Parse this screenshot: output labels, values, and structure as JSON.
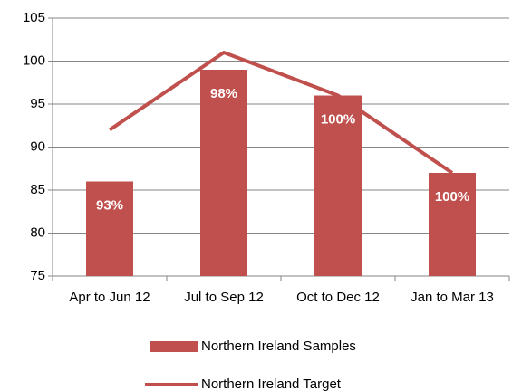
{
  "chart_data": {
    "type": "combo",
    "categories": [
      "Apr to Jun 12",
      "Jul to Sep 12",
      "Oct to Dec 12",
      "Jan to Mar 13"
    ],
    "series": [
      {
        "name": "Northern Ireland Samples",
        "type": "bar",
        "color": "#c0504d",
        "values": [
          86,
          99,
          96,
          87
        ]
      },
      {
        "name": "Northern Ireland Target",
        "type": "line",
        "color": "#c0504d",
        "values": [
          92,
          101,
          96,
          87
        ]
      }
    ],
    "annotations": [
      "93%",
      "98%",
      "100%",
      "100%"
    ],
    "ylim": [
      75,
      105
    ],
    "yticks": [
      75,
      80,
      85,
      90,
      95,
      100,
      105
    ],
    "grid": true,
    "legend": "bottom"
  }
}
